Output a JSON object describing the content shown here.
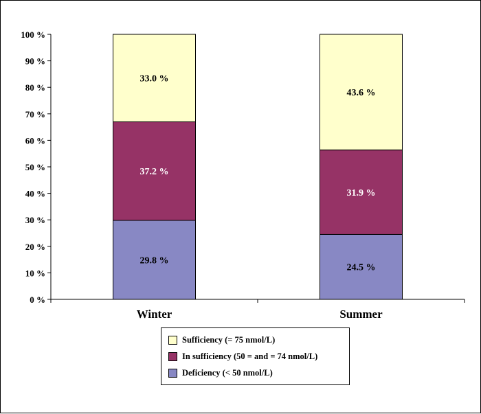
{
  "chart_data": {
    "type": "bar",
    "stacked": true,
    "categories": [
      "Winter",
      "Summer"
    ],
    "series": [
      {
        "name": "Deficiency (< 50 nmol/L)",
        "values": [
          29.8,
          24.5
        ],
        "labels": [
          "29.8 %",
          "24.5 %"
        ],
        "color": "#8888c4",
        "text_color": "#000000"
      },
      {
        "name": "In sufficiency (50 = and = 74 nmol/L)",
        "values": [
          37.2,
          31.9
        ],
        "labels": [
          "37.2 %",
          "31.9 %"
        ],
        "color": "#963366",
        "text_color": "#ffffff"
      },
      {
        "name": "Sufficiency (= 75 nmol/L)",
        "values": [
          33.0,
          43.6
        ],
        "labels": [
          "33.0 %",
          "43.6 %"
        ],
        "color": "#ffffcc",
        "text_color": "#000000"
      }
    ],
    "ylim": [
      0,
      100
    ],
    "yticks": [
      "0 %",
      "10 %",
      "20 %",
      "30 %",
      "40 %",
      "50 %",
      "60 %",
      "70 %",
      "80 %",
      "90 %",
      "100 %"
    ],
    "grid": false,
    "legend_position": "bottom-center",
    "xlabel": "",
    "ylabel": "",
    "title": ""
  },
  "legend": {
    "items": [
      {
        "label": "Sufficiency (= 75 nmol/L)",
        "color": "#ffffcc"
      },
      {
        "label": "In sufficiency (50 = and = 74 nmol/L)",
        "color": "#963366"
      },
      {
        "label": "Deficiency (< 50 nmol/L)",
        "color": "#8888c4"
      }
    ]
  }
}
